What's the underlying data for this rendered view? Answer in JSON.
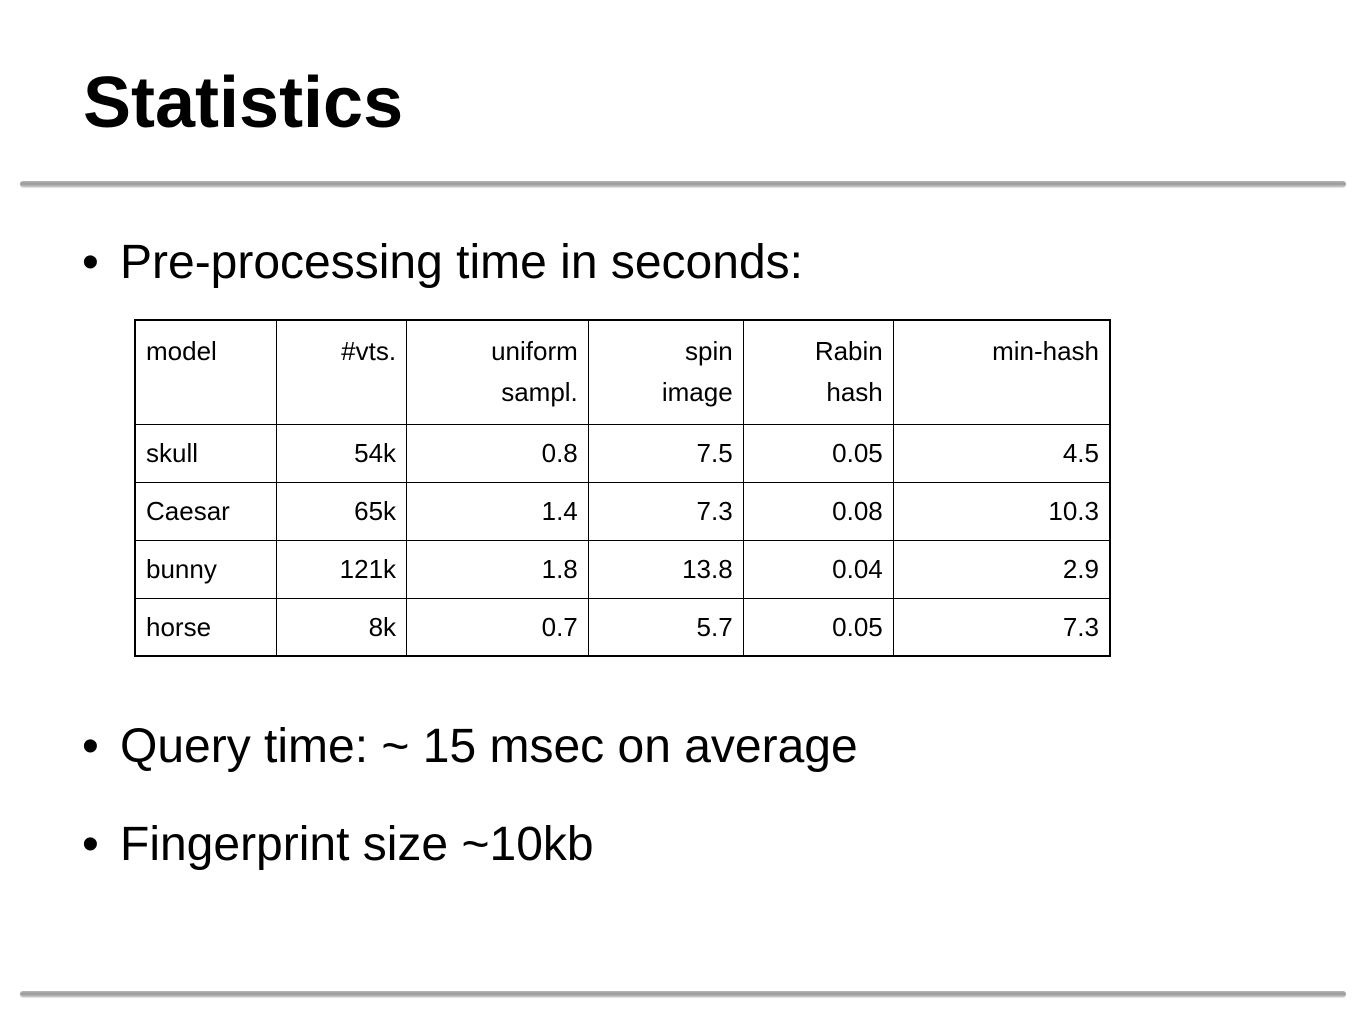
{
  "slide": {
    "title": "Statistics"
  },
  "bullets": {
    "symbol": "•",
    "preprocessing": "Pre-processing time in seconds:",
    "query": "Query time: ~ 15 msec on average",
    "fingerprint": "Fingerprint size ~10kb"
  },
  "table": {
    "headers": [
      [
        "model"
      ],
      [
        "#vts."
      ],
      [
        "uniform",
        "sampl."
      ],
      [
        "spin",
        "image"
      ],
      [
        "Rabin",
        "hash"
      ],
      [
        "min-hash"
      ]
    ],
    "rows": [
      [
        "skull",
        "54k",
        "0.8",
        "7.5",
        "0.05",
        "4.5"
      ],
      [
        "Caesar",
        "65k",
        "1.4",
        "7.3",
        "0.08",
        "10.3"
      ],
      [
        "bunny",
        "121k",
        "1.8",
        "13.8",
        "0.04",
        "2.9"
      ],
      [
        "horse",
        "8k",
        "0.7",
        "5.7",
        "0.05",
        "7.3"
      ]
    ]
  }
}
